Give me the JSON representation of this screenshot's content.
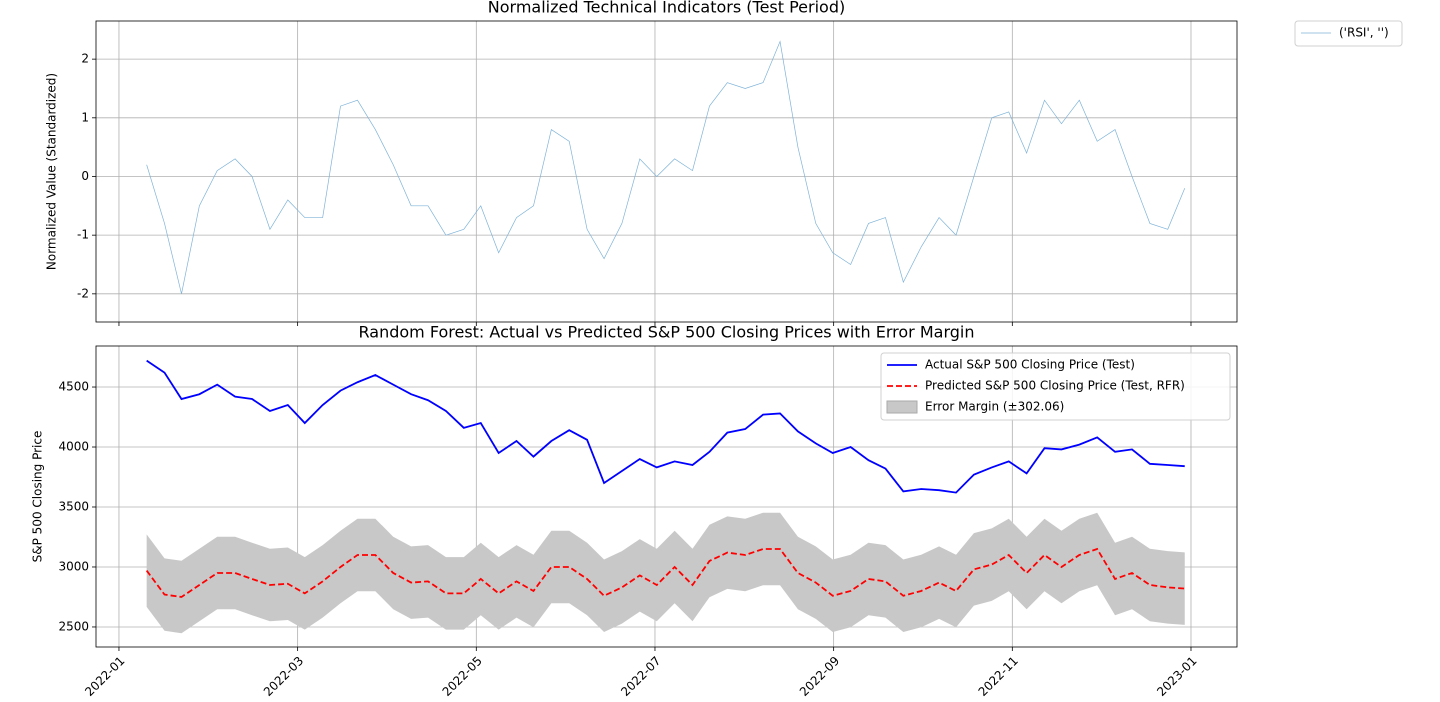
{
  "chart_data": [
    {
      "type": "line",
      "title": "Normalized Technical Indicators (Test Period)",
      "ylabel": "Normalized Value (Standardized)",
      "x": [
        1.31,
        1.51,
        1.7,
        1.9,
        2.1,
        2.3,
        2.49,
        2.69,
        2.89,
        3.08,
        3.28,
        3.48,
        3.67,
        3.87,
        4.07,
        4.27,
        4.46,
        4.66,
        4.86,
        5.05,
        5.25,
        5.45,
        5.64,
        5.84,
        6.04,
        6.24,
        6.43,
        6.63,
        6.83,
        7.02,
        7.22,
        7.42,
        7.61,
        7.81,
        8.01,
        8.21,
        8.4,
        8.6,
        8.8,
        8.99,
        9.19,
        9.39,
        9.58,
        9.78,
        9.98,
        10.18,
        10.37,
        10.57,
        10.77,
        10.96,
        11.16,
        11.36,
        11.55,
        11.75,
        11.95,
        12.15,
        12.34,
        12.54,
        12.74,
        12.93
      ],
      "series": [
        {
          "name": "('RSI', '')",
          "color": "#7fb3d8",
          "values": [
            0.2,
            -0.8,
            -2.0,
            -0.5,
            0.1,
            0.3,
            0.0,
            -0.9,
            -0.4,
            -0.7,
            -0.7,
            1.2,
            1.3,
            0.8,
            0.2,
            -0.5,
            -0.5,
            -1.0,
            -0.9,
            -0.5,
            -1.3,
            -0.7,
            -0.5,
            0.8,
            0.6,
            -0.9,
            -1.4,
            -0.8,
            0.3,
            0.0,
            0.3,
            0.1,
            1.2,
            1.6,
            1.5,
            1.6,
            2.3,
            0.5,
            -0.8,
            -1.3,
            -1.5,
            -0.8,
            -0.7,
            -1.8,
            -1.2,
            -0.7,
            -1.0,
            0.0,
            1.0,
            1.1,
            0.4,
            1.3,
            0.9,
            1.3,
            0.6,
            0.8,
            0.0,
            -0.8,
            -0.9,
            -0.2
          ]
        }
      ],
      "xlim": [
        0.743,
        13.515
      ],
      "ylim": [
        -2.48,
        2.65
      ],
      "yticks": [
        -2,
        -1,
        0,
        1,
        2
      ],
      "grid": true,
      "legend": "outside"
    },
    {
      "type": "line",
      "title": "Random Forest: Actual vs Predicted S&P 500 Closing Prices with Error Margin",
      "ylabel": "S&P 500 Closing Price",
      "x": [
        1.31,
        1.51,
        1.7,
        1.9,
        2.1,
        2.3,
        2.49,
        2.69,
        2.89,
        3.08,
        3.28,
        3.48,
        3.67,
        3.87,
        4.07,
        4.27,
        4.46,
        4.66,
        4.86,
        5.05,
        5.25,
        5.45,
        5.64,
        5.84,
        6.04,
        6.24,
        6.43,
        6.63,
        6.83,
        7.02,
        7.22,
        7.42,
        7.61,
        7.81,
        8.01,
        8.21,
        8.4,
        8.6,
        8.8,
        8.99,
        9.19,
        9.39,
        9.58,
        9.78,
        9.98,
        10.18,
        10.37,
        10.57,
        10.77,
        10.96,
        11.16,
        11.36,
        11.55,
        11.75,
        11.95,
        12.15,
        12.34,
        12.54,
        12.74,
        12.93
      ],
      "series": [
        {
          "name": "Actual S&P 500 Closing Price (Test)",
          "color": "#0000ff",
          "dashed": false,
          "values": [
            4720,
            4620,
            4400,
            4440,
            4520,
            4420,
            4400,
            4300,
            4350,
            4200,
            4350,
            4470,
            4540,
            4600,
            4520,
            4440,
            4390,
            4300,
            4160,
            4200,
            3950,
            4050,
            3920,
            4050,
            4140,
            4060,
            3700,
            3800,
            3900,
            3830,
            3880,
            3850,
            3960,
            4120,
            4150,
            4270,
            4280,
            4130,
            4030,
            3950,
            4000,
            3890,
            3820,
            3630,
            3650,
            3640,
            3620,
            3770,
            3830,
            3880,
            3780,
            3990,
            3980,
            4020,
            4080,
            3960,
            3980,
            3860,
            3850,
            3840
          ]
        },
        {
          "name": "Predicted S&P 500 Closing Price (Test, RFR)",
          "color": "#ff0000",
          "dashed": true,
          "values": [
            2970,
            2770,
            2750,
            2850,
            2950,
            2950,
            2900,
            2850,
            2860,
            2780,
            2880,
            3000,
            3100,
            3100,
            2950,
            2870,
            2880,
            2780,
            2780,
            2900,
            2780,
            2880,
            2800,
            3000,
            3000,
            2900,
            2760,
            2830,
            2930,
            2850,
            3000,
            2850,
            3050,
            3120,
            3100,
            3150,
            3150,
            2950,
            2870,
            2760,
            2800,
            2900,
            2880,
            2760,
            2800,
            2870,
            2800,
            2980,
            3020,
            3100,
            2950,
            3100,
            3000,
            3100,
            3150,
            2900,
            2950,
            2850,
            2830,
            2820
          ]
        }
      ],
      "band": {
        "name": "Error Margin (±302.06)",
        "margin": 302.06,
        "color": "#c8c8c8"
      },
      "xlim": [
        0.743,
        13.515
      ],
      "ylim": [
        2333,
        4842
      ],
      "yticks": [
        2500,
        3000,
        3500,
        4000,
        4500
      ],
      "xticks": [
        {
          "value": 1,
          "label": "2022-01"
        },
        {
          "value": 3,
          "label": "2022-03"
        },
        {
          "value": 5,
          "label": "2022-05"
        },
        {
          "value": 7,
          "label": "2022-07"
        },
        {
          "value": 9,
          "label": "2022-09"
        },
        {
          "value": 11,
          "label": "2022-11"
        },
        {
          "value": 13,
          "label": "2023-01"
        }
      ],
      "grid": true,
      "legend": "upper right"
    }
  ]
}
